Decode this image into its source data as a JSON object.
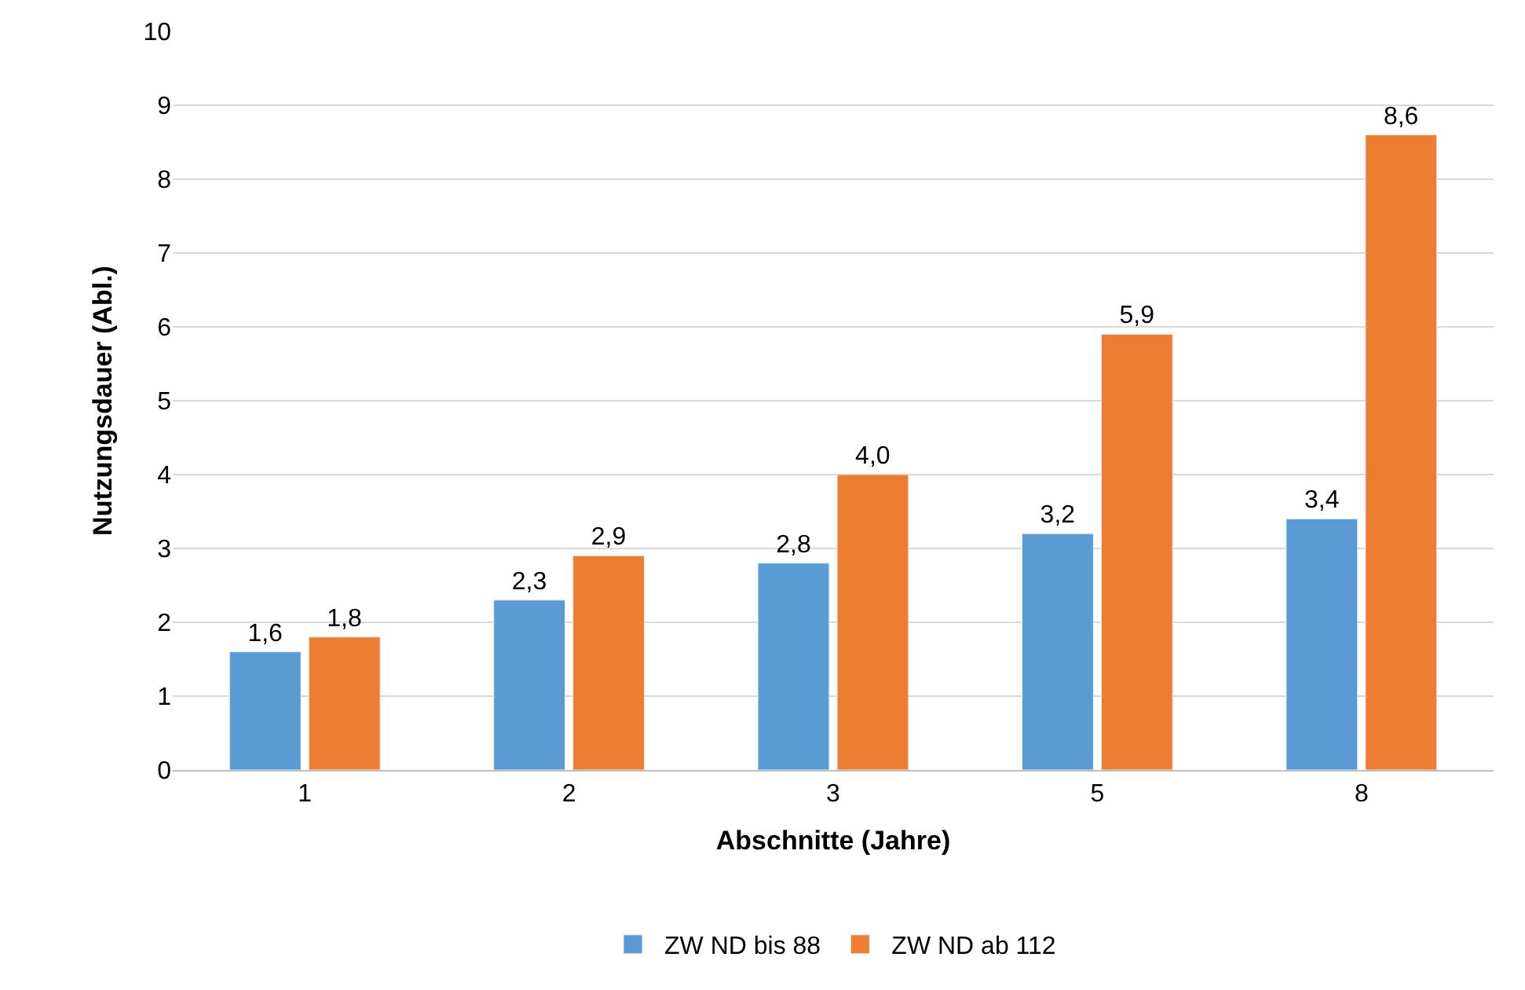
{
  "chart_data": {
    "type": "bar",
    "xlabel": "Abschnitte (Jahre)",
    "ylabel": "Nutzungsdauer (Abl.)",
    "categories": [
      "1",
      "2",
      "3",
      "5",
      "8"
    ],
    "series": [
      {
        "name": "ZW ND bis 88",
        "color": "#5b9bd5",
        "values": [
          1.6,
          2.3,
          2.8,
          3.2,
          3.4
        ],
        "value_labels": [
          "1,6",
          "2,3",
          "2,8",
          "3,2",
          "3,4"
        ]
      },
      {
        "name": "ZW ND ab 112",
        "color": "#ed7d31",
        "values": [
          1.8,
          2.9,
          4.0,
          5.9,
          8.6
        ],
        "value_labels": [
          "1,8",
          "2,9",
          "4,0",
          "5,9",
          "8,6"
        ]
      }
    ],
    "ylim": [
      0,
      10
    ],
    "yticks": [
      0,
      1,
      2,
      3,
      4,
      5,
      6,
      7,
      8,
      9,
      10
    ],
    "grid": "y",
    "legend": "bottom"
  }
}
